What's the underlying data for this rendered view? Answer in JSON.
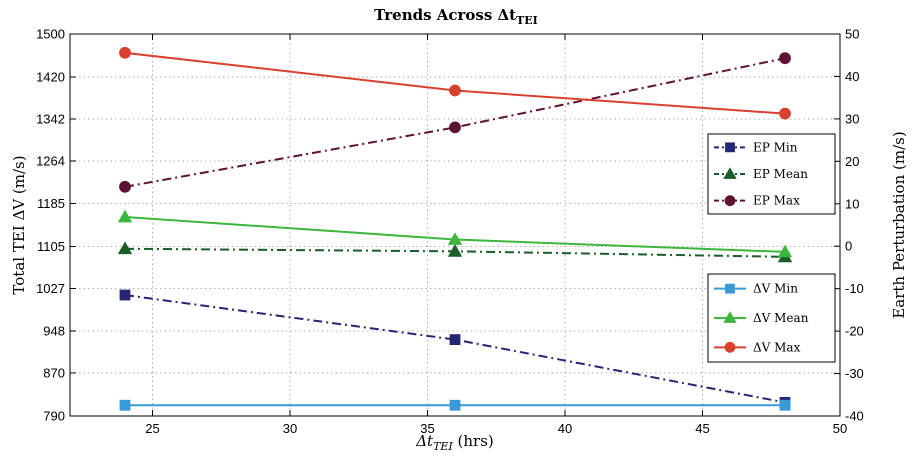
{
  "chart_data": {
    "type": "line",
    "title": "Trends Across Δt",
    "title_subscript": "TEI",
    "xlabel": "Δt",
    "xlabel_subscript": "TEI",
    "xlabel_suffix": " (hrs)",
    "ylabel_left": "Total TEI ΔV (m/s)",
    "ylabel_right": "Earth Perturbation (m/s)",
    "xlim": [
      22,
      50
    ],
    "ylim_left": [
      790,
      1500
    ],
    "ylim_right": [
      -40,
      50
    ],
    "xticks": [
      25,
      30,
      35,
      40,
      45,
      50
    ],
    "yticks_left": [
      790,
      870,
      948,
      1027,
      1105,
      1185,
      1264,
      1342,
      1420,
      1500
    ],
    "yticks_right": [
      -40,
      -30,
      -20,
      -10,
      0,
      10,
      20,
      30,
      40,
      50
    ],
    "grid": true,
    "x": [
      24,
      36,
      48
    ],
    "series_left": [
      {
        "name": "ΔV Min",
        "values": [
          810,
          810,
          810
        ],
        "color": "#3a9ad9",
        "marker": "square",
        "dash": "solid"
      },
      {
        "name": "ΔV Mean",
        "values": [
          1160,
          1118,
          1095
        ],
        "color": "#3cb63c",
        "marker": "triangle",
        "dash": "solid"
      },
      {
        "name": "ΔV Max",
        "values": [
          1465,
          1395,
          1352
        ],
        "color": "#d8412f",
        "marker": "circle",
        "dash": "solid"
      }
    ],
    "series_right": [
      {
        "name": "EP Min",
        "values": [
          -11.5,
          -22,
          -36.8
        ],
        "color": "#262673",
        "marker": "square",
        "dash": "dashdot"
      },
      {
        "name": "EP Mean",
        "values": [
          -0.6,
          -1.2,
          -2.5
        ],
        "color": "#1a5c2a",
        "marker": "triangle",
        "dash": "dashdot"
      },
      {
        "name": "EP Max",
        "values": [
          14,
          28,
          44.3
        ],
        "color": "#5e1234",
        "marker": "circle",
        "dash": "dashdot"
      }
    ],
    "legends": [
      {
        "position": "right-upper",
        "entries": [
          "EP Min",
          "EP Mean",
          "EP Max"
        ]
      },
      {
        "position": "right-lower",
        "entries": [
          "ΔV Min",
          "ΔV Mean",
          "ΔV Max"
        ]
      }
    ]
  }
}
